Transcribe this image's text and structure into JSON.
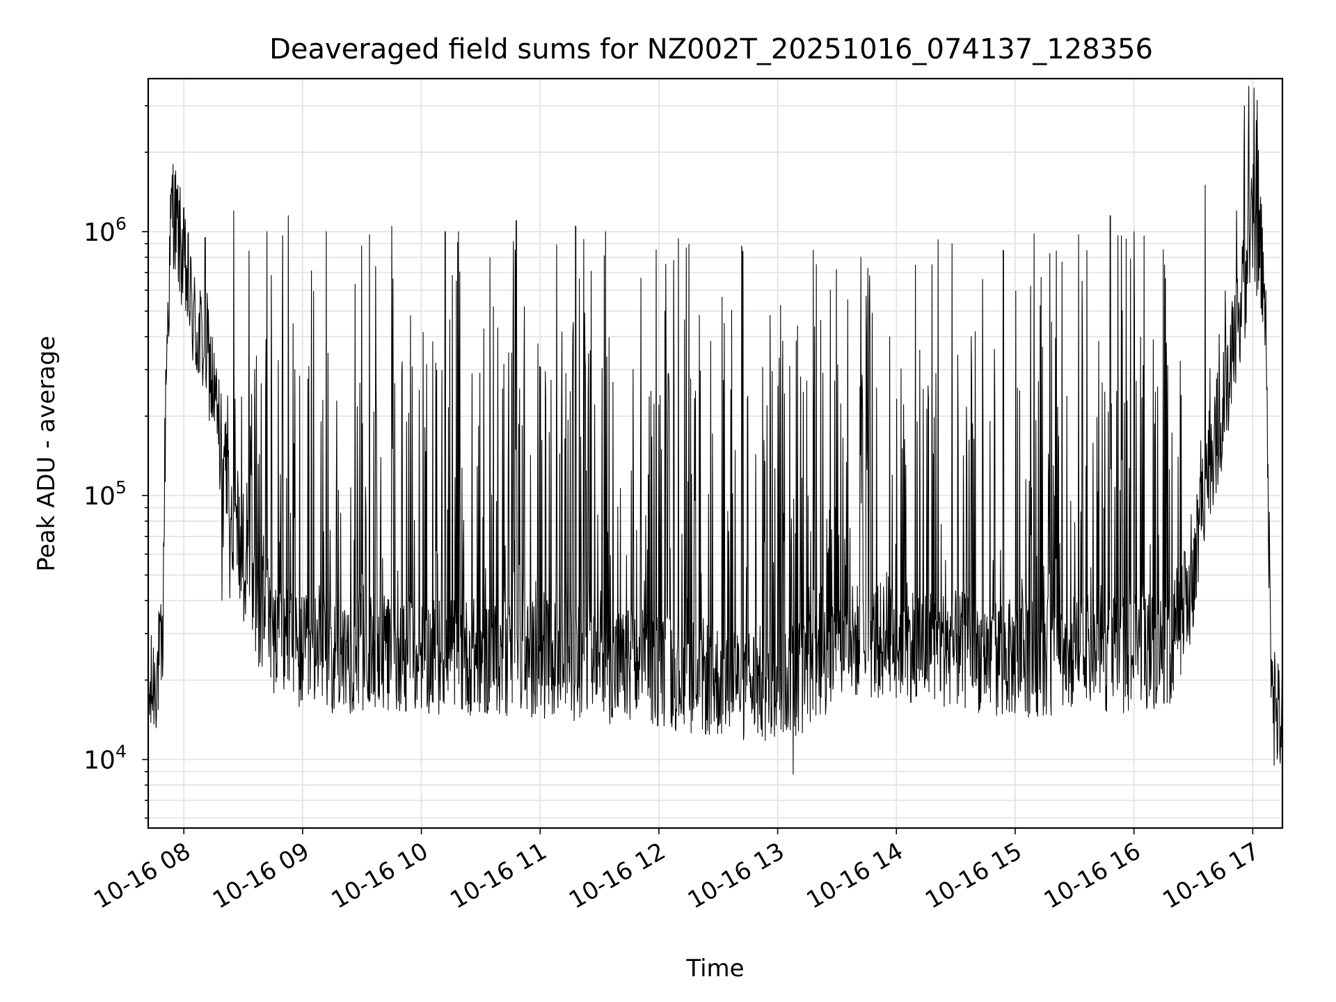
{
  "chart_data": {
    "type": "line",
    "title": "Deaveraged field sums for NZ002T_20251016_074137_128356",
    "xlabel": "Time",
    "ylabel": "Peak ADU - average",
    "yscale": "log",
    "ylim": [
      5500,
      3800000
    ],
    "xlim_hours": [
      7.7,
      17.25
    ],
    "grid": true,
    "line_color": "#000000",
    "x_ticks": [
      {
        "hour": 8,
        "label": "10-16 08"
      },
      {
        "hour": 9,
        "label": "10-16 09"
      },
      {
        "hour": 10,
        "label": "10-16 10"
      },
      {
        "hour": 11,
        "label": "10-16 11"
      },
      {
        "hour": 12,
        "label": "10-16 12"
      },
      {
        "hour": 13,
        "label": "10-16 13"
      },
      {
        "hour": 14,
        "label": "10-16 14"
      },
      {
        "hour": 15,
        "label": "10-16 15"
      },
      {
        "hour": 16,
        "label": "10-16 16"
      },
      {
        "hour": 17,
        "label": "10-16 17"
      }
    ],
    "y_ticks": [
      {
        "value": 10000,
        "base": "10",
        "exp": "4"
      },
      {
        "value": 100000,
        "base": "10",
        "exp": "5"
      },
      {
        "value": 1000000,
        "base": "10",
        "exp": "6"
      }
    ],
    "series": [
      {
        "name": "Peak ADU - average",
        "envelope": {
          "hours": [
            7.7,
            7.75,
            7.82,
            7.85,
            7.9,
            8.0,
            8.1,
            8.2,
            8.3,
            8.4,
            8.5,
            8.6,
            8.75,
            9.0,
            10.0,
            11.0,
            12.0,
            12.5,
            13.0,
            13.3,
            13.6,
            14.0,
            14.5,
            15.0,
            15.5,
            16.0,
            16.3,
            16.5,
            16.6,
            16.8,
            16.9,
            17.0,
            17.1,
            17.15,
            17.2,
            17.25
          ],
          "baseline": [
            16000,
            20000,
            25000,
            300000,
            1300000,
            750000,
            420000,
            350000,
            170000,
            90000,
            55000,
            40000,
            30000,
            25000,
            25000,
            24000,
            22000,
            20000,
            19000,
            22000,
            28000,
            28000,
            26000,
            24000,
            25000,
            25000,
            27000,
            45000,
            120000,
            250000,
            500000,
            1100000,
            700000,
            30000,
            15000,
            13000
          ]
        },
        "spike_peaks": [
          {
            "hour": 8.18,
            "value": 950000
          },
          {
            "hour": 8.42,
            "value": 1200000
          },
          {
            "hour": 8.7,
            "value": 1000000
          },
          {
            "hour": 8.88,
            "value": 1150000
          },
          {
            "hour": 9.2,
            "value": 1000000
          },
          {
            "hour": 9.75,
            "value": 1050000
          },
          {
            "hour": 10.2,
            "value": 1000000
          },
          {
            "hour": 10.8,
            "value": 1100000
          },
          {
            "hour": 11.3,
            "value": 1050000
          },
          {
            "hour": 11.55,
            "value": 1000000
          },
          {
            "hour": 12.05,
            "value": 500000
          },
          {
            "hour": 12.55,
            "value": 450000
          },
          {
            "hour": 13.3,
            "value": 850000
          },
          {
            "hour": 13.7,
            "value": 800000
          },
          {
            "hour": 14.3,
            "value": 750000
          },
          {
            "hour": 14.9,
            "value": 850000
          },
          {
            "hour": 15.8,
            "value": 1150000
          },
          {
            "hour": 16.0,
            "value": 1000000
          },
          {
            "hour": 16.6,
            "value": 1500000
          },
          {
            "hour": 16.93,
            "value": 3000000
          },
          {
            "hour": 17.18,
            "value": 9500
          },
          {
            "hour": 13.13,
            "value": 8800
          }
        ]
      }
    ]
  }
}
